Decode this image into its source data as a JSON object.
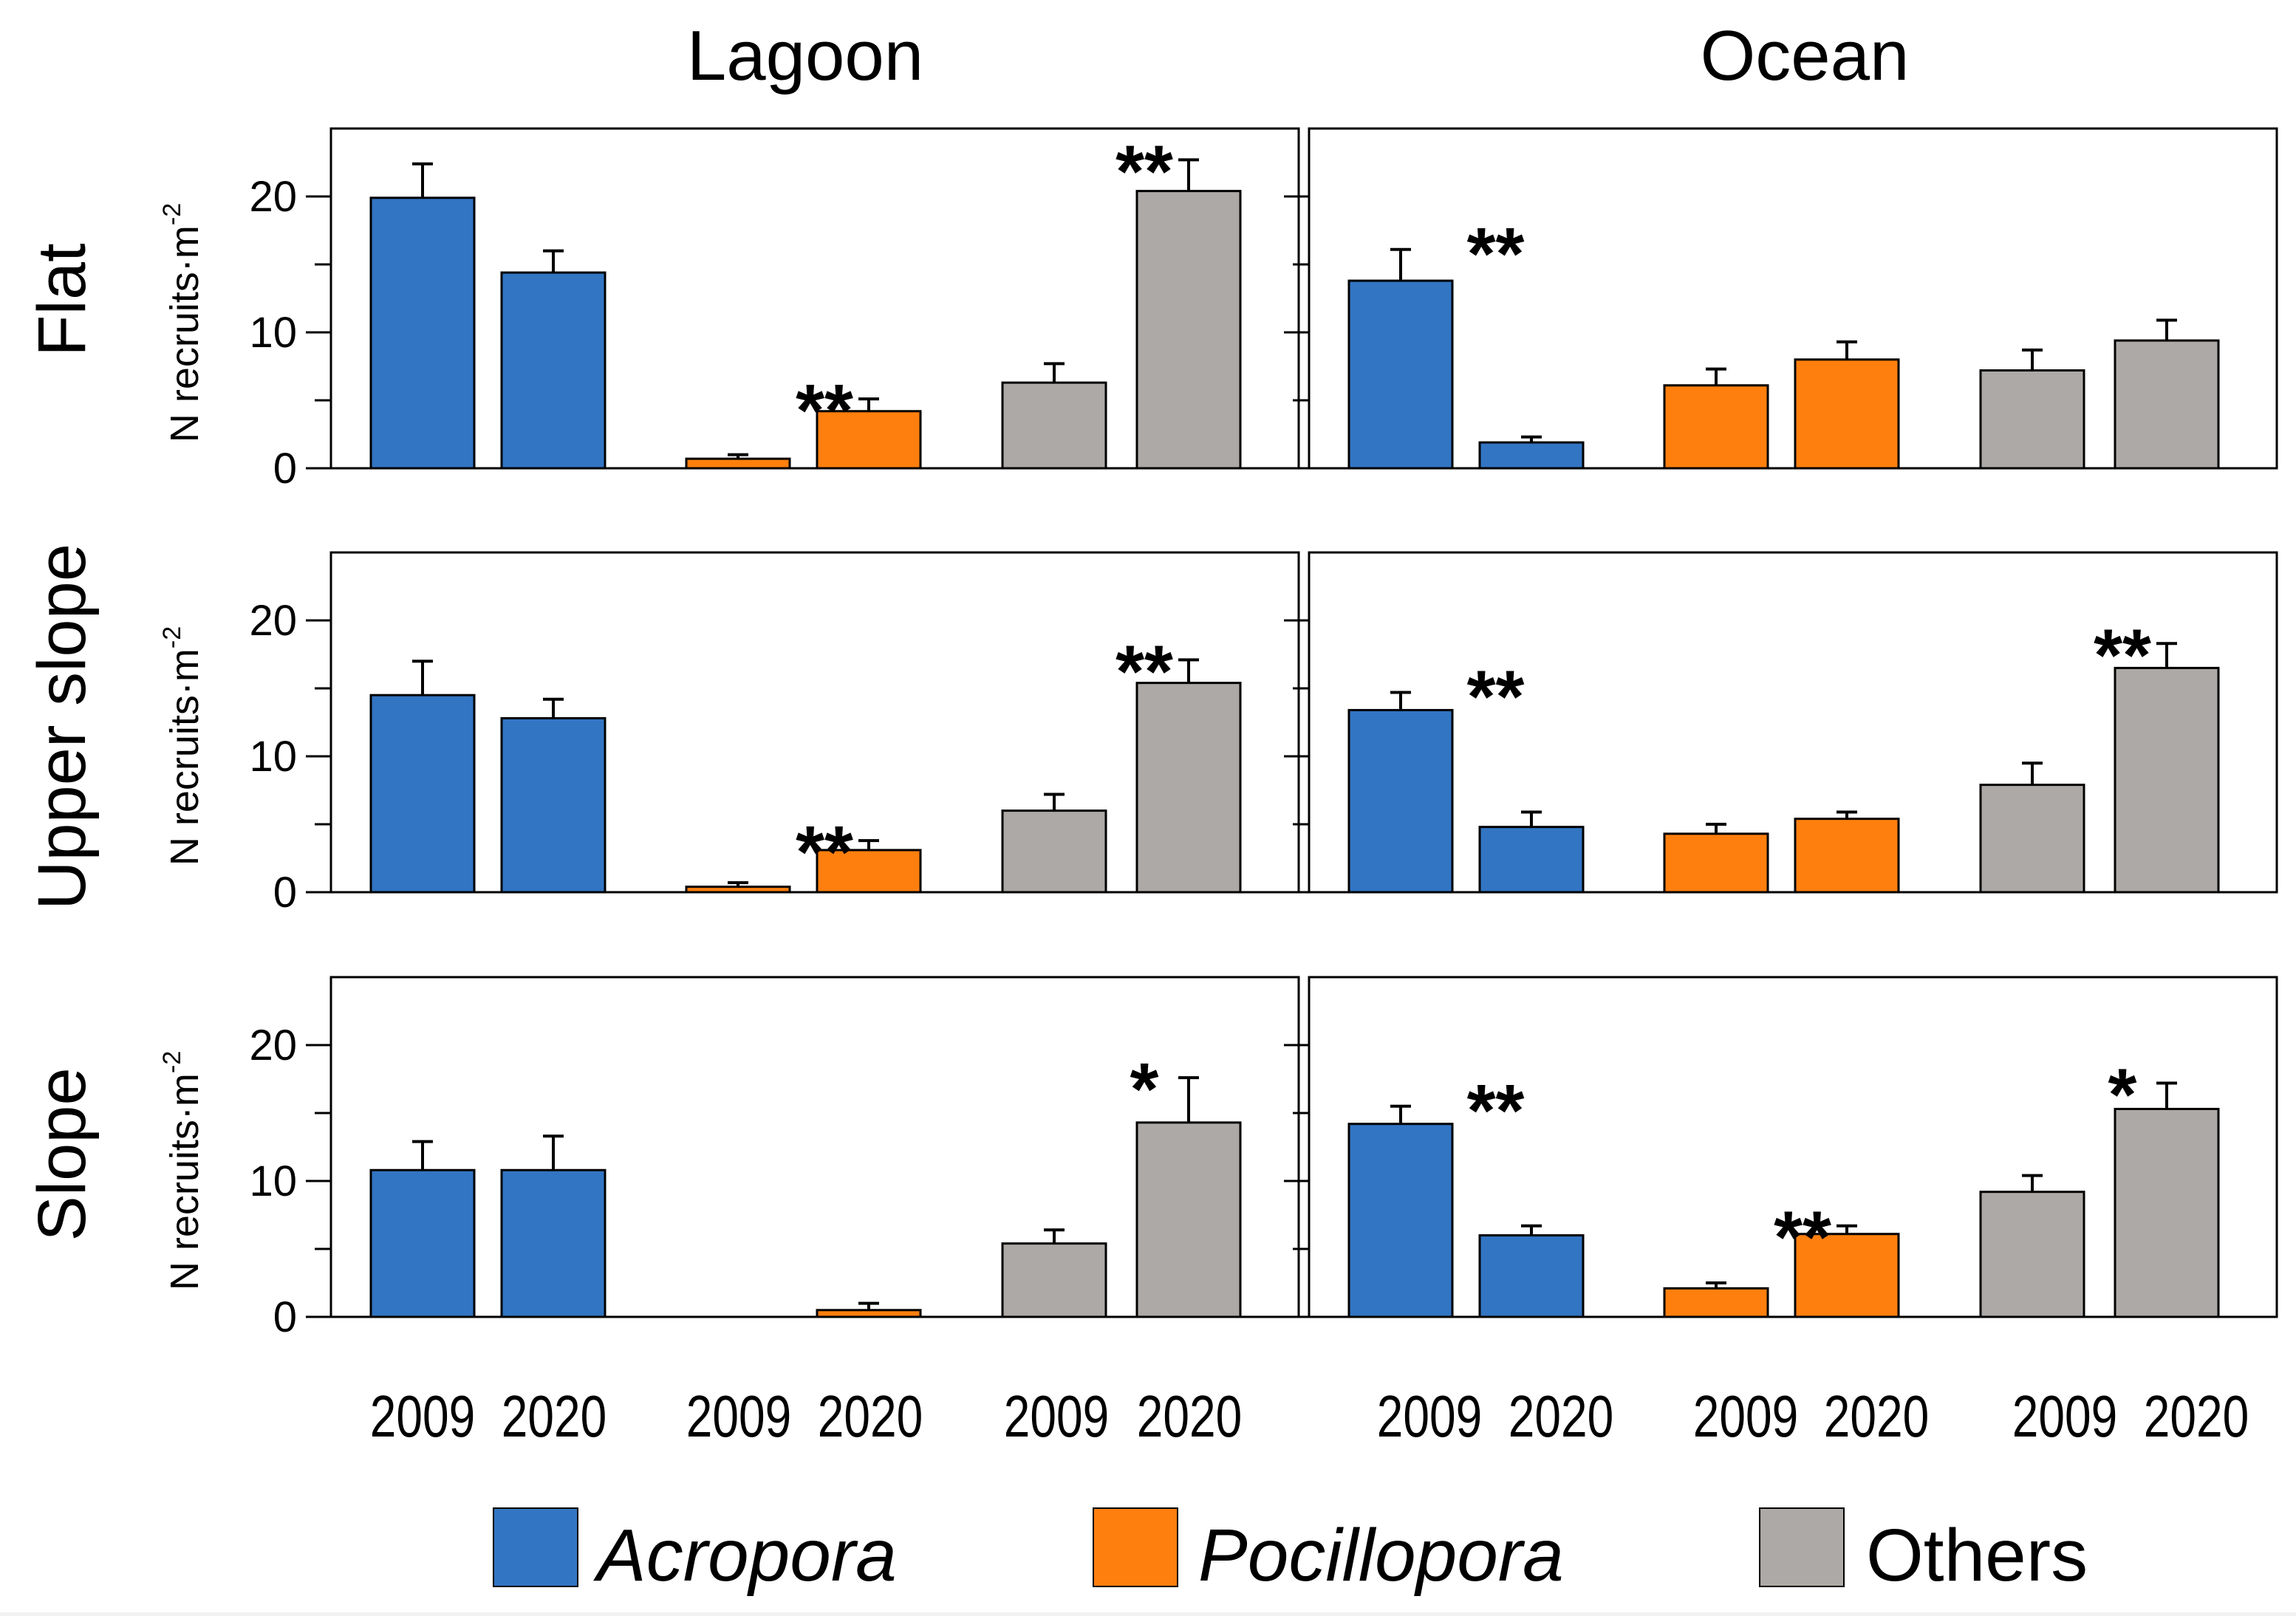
{
  "figure": {
    "column_titles": [
      "Lagoon",
      "Ocean"
    ],
    "row_titles": [
      "Flat",
      "Upper slope",
      "Slope"
    ],
    "y_axis_label": "N recruits·m",
    "y_axis_label_exponent": "-2",
    "x_year_labels": [
      "2009",
      "2020"
    ]
  },
  "legend": [
    {
      "label": "Acropora",
      "color": "#3275C3",
      "italic": true
    },
    {
      "label": "Pocillopora",
      "color": "#FF7F0E",
      "italic": true
    },
    {
      "label": "Others",
      "color": "#ADA9A6",
      "italic": false
    }
  ],
  "chart_data": [
    {
      "type": "bar",
      "title": "Lagoon — Flat",
      "zone": "Lagoon",
      "habitat": "Flat",
      "categories": [
        "2009",
        "2020"
      ],
      "ylim": [
        0,
        25
      ],
      "yticks": [
        0,
        10,
        20
      ],
      "series": [
        {
          "name": "Acropora",
          "values": [
            19.9,
            14.4
          ],
          "errors": [
            2.5,
            1.6
          ],
          "sig": ""
        },
        {
          "name": "Pocillopora",
          "values": [
            0.7,
            4.2
          ],
          "errors": [
            0.3,
            0.9
          ],
          "sig": "**"
        },
        {
          "name": "Others",
          "values": [
            6.3,
            20.4
          ],
          "errors": [
            1.4,
            2.3
          ],
          "sig": "**"
        }
      ]
    },
    {
      "type": "bar",
      "title": "Ocean — Flat",
      "zone": "Ocean",
      "habitat": "Flat",
      "categories": [
        "2009",
        "2020"
      ],
      "ylim": [
        0,
        25
      ],
      "yticks": [
        0,
        10,
        20
      ],
      "series": [
        {
          "name": "Acropora",
          "values": [
            13.8,
            1.9
          ],
          "errors": [
            2.3,
            0.4
          ],
          "sig": "**"
        },
        {
          "name": "Pocillopora",
          "values": [
            6.1,
            8.0
          ],
          "errors": [
            1.2,
            1.3
          ],
          "sig": ""
        },
        {
          "name": "Others",
          "values": [
            7.2,
            9.4
          ],
          "errors": [
            1.5,
            1.5
          ],
          "sig": ""
        }
      ]
    },
    {
      "type": "bar",
      "title": "Lagoon — Upper slope",
      "zone": "Lagoon",
      "habitat": "Upper slope",
      "categories": [
        "2009",
        "2020"
      ],
      "ylim": [
        0,
        25
      ],
      "yticks": [
        0,
        10,
        20
      ],
      "series": [
        {
          "name": "Acropora",
          "values": [
            14.5,
            12.8
          ],
          "errors": [
            2.5,
            1.4
          ],
          "sig": ""
        },
        {
          "name": "Pocillopora",
          "values": [
            0.4,
            3.1
          ],
          "errors": [
            0.3,
            0.7
          ],
          "sig": "**"
        },
        {
          "name": "Others",
          "values": [
            6.0,
            15.4
          ],
          "errors": [
            1.2,
            1.7
          ],
          "sig": "**"
        }
      ]
    },
    {
      "type": "bar",
      "title": "Ocean — Upper slope",
      "zone": "Ocean",
      "habitat": "Upper slope",
      "categories": [
        "2009",
        "2020"
      ],
      "ylim": [
        0,
        25
      ],
      "yticks": [
        0,
        10,
        20
      ],
      "series": [
        {
          "name": "Acropora",
          "values": [
            13.4,
            4.8
          ],
          "errors": [
            1.3,
            1.1
          ],
          "sig": "**"
        },
        {
          "name": "Pocillopora",
          "values": [
            4.3,
            5.4
          ],
          "errors": [
            0.7,
            0.5
          ],
          "sig": ""
        },
        {
          "name": "Others",
          "values": [
            7.9,
            16.5
          ],
          "errors": [
            1.6,
            1.8
          ],
          "sig": "**"
        }
      ]
    },
    {
      "type": "bar",
      "title": "Lagoon — Slope",
      "zone": "Lagoon",
      "habitat": "Slope",
      "categories": [
        "2009",
        "2020"
      ],
      "ylim": [
        0,
        25
      ],
      "yticks": [
        0,
        10,
        20
      ],
      "series": [
        {
          "name": "Acropora",
          "values": [
            10.8,
            10.8
          ],
          "errors": [
            2.1,
            2.5
          ],
          "sig": ""
        },
        {
          "name": "Pocillopora",
          "values": [
            0.0,
            0.5
          ],
          "errors": [
            0.0,
            0.5
          ],
          "sig": ""
        },
        {
          "name": "Others",
          "values": [
            5.4,
            14.3
          ],
          "errors": [
            1.0,
            3.3
          ],
          "sig": "*"
        }
      ]
    },
    {
      "type": "bar",
      "title": "Ocean — Slope",
      "zone": "Ocean",
      "habitat": "Slope",
      "categories": [
        "2009",
        "2020"
      ],
      "ylim": [
        0,
        25
      ],
      "yticks": [
        0,
        10,
        20
      ],
      "series": [
        {
          "name": "Acropora",
          "values": [
            14.2,
            6.0
          ],
          "errors": [
            1.3,
            0.7
          ],
          "sig": "**"
        },
        {
          "name": "Pocillopora",
          "values": [
            2.1,
            6.1
          ],
          "errors": [
            0.4,
            0.6
          ],
          "sig": "**"
        },
        {
          "name": "Others",
          "values": [
            9.2,
            15.3
          ],
          "errors": [
            1.2,
            1.9
          ],
          "sig": "*"
        }
      ]
    }
  ]
}
